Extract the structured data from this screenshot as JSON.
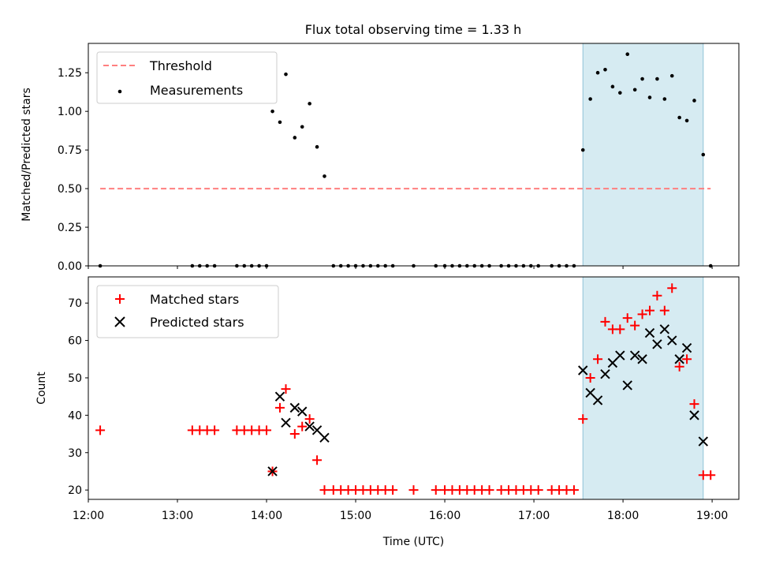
{
  "chart_data": [
    {
      "type": "scatter",
      "title": "Flux total observing time = 1.33 h",
      "xlabel": "",
      "ylabel": "Matched/Predicted stars",
      "xlim": [
        "12:00",
        "19:18"
      ],
      "ylim": [
        0,
        1.44
      ],
      "yticks": [
        "0.00",
        "0.25",
        "0.50",
        "0.75",
        "1.00",
        "1.25"
      ],
      "shaded_interval": [
        "17:33",
        "18:54"
      ],
      "legend_position": "upper-left",
      "legend": [
        {
          "label": "Threshold",
          "marker": "dashed-line",
          "color": "#ff7f7f"
        },
        {
          "label": "Measurements",
          "marker": "dot",
          "color": "#000000"
        }
      ],
      "threshold": {
        "value": 0.5,
        "x_range": [
          "12:08",
          "18:59"
        ]
      },
      "series": [
        {
          "name": "Measurements",
          "points": [
            [
              "12:08",
              0
            ],
            [
              "13:10",
              0
            ],
            [
              "13:15",
              0
            ],
            [
              "13:20",
              0
            ],
            [
              "13:25",
              0
            ],
            [
              "13:40",
              0
            ],
            [
              "13:45",
              0
            ],
            [
              "13:50",
              0
            ],
            [
              "13:55",
              0
            ],
            [
              "14:00",
              0
            ],
            [
              "14:04",
              1.0
            ],
            [
              "14:09",
              0.93
            ],
            [
              "14:13",
              1.24
            ],
            [
              "14:19",
              0.83
            ],
            [
              "14:24",
              0.9
            ],
            [
              "14:29",
              1.05
            ],
            [
              "14:34",
              0.77
            ],
            [
              "14:39",
              0.58
            ],
            [
              "14:45",
              0
            ],
            [
              "14:50",
              0
            ],
            [
              "14:55",
              0
            ],
            [
              "15:00",
              0
            ],
            [
              "15:05",
              0
            ],
            [
              "15:10",
              0
            ],
            [
              "15:15",
              0
            ],
            [
              "15:20",
              0
            ],
            [
              "15:25",
              0
            ],
            [
              "15:39",
              0
            ],
            [
              "15:54",
              0
            ],
            [
              "16:00",
              0
            ],
            [
              "16:05",
              0
            ],
            [
              "16:10",
              0
            ],
            [
              "16:15",
              0
            ],
            [
              "16:20",
              0
            ],
            [
              "16:25",
              0
            ],
            [
              "16:30",
              0
            ],
            [
              "16:38",
              0
            ],
            [
              "16:43",
              0
            ],
            [
              "16:48",
              0
            ],
            [
              "16:53",
              0
            ],
            [
              "16:58",
              0
            ],
            [
              "17:03",
              0
            ],
            [
              "17:12",
              0
            ],
            [
              "17:17",
              0
            ],
            [
              "17:22",
              0
            ],
            [
              "17:27",
              0
            ],
            [
              "17:33",
              0.75
            ],
            [
              "17:38",
              1.08
            ],
            [
              "17:43",
              1.25
            ],
            [
              "17:48",
              1.27
            ],
            [
              "17:53",
              1.16
            ],
            [
              "17:58",
              1.12
            ],
            [
              "18:03",
              1.37
            ],
            [
              "18:08",
              1.14
            ],
            [
              "18:13",
              1.21
            ],
            [
              "18:18",
              1.09
            ],
            [
              "18:23",
              1.21
            ],
            [
              "18:28",
              1.08
            ],
            [
              "18:33",
              1.23
            ],
            [
              "18:38",
              0.96
            ],
            [
              "18:43",
              0.94
            ],
            [
              "18:48",
              1.07
            ],
            [
              "18:54",
              0.72
            ],
            [
              "18:59",
              0
            ]
          ]
        }
      ]
    },
    {
      "type": "scatter",
      "title": "",
      "xlabel": "Time (UTC)",
      "ylabel": "Count",
      "xlim": [
        "12:00",
        "19:18"
      ],
      "ylim": [
        17.5,
        77
      ],
      "xticks": [
        "12:00",
        "13:00",
        "14:00",
        "15:00",
        "16:00",
        "17:00",
        "18:00",
        "19:00"
      ],
      "yticks": [
        "20",
        "30",
        "40",
        "50",
        "60",
        "70"
      ],
      "shaded_interval": [
        "17:33",
        "18:54"
      ],
      "legend_position": "upper-left",
      "legend": [
        {
          "label": "Matched stars",
          "marker": "plus",
          "color": "#ff0000"
        },
        {
          "label": "Predicted stars",
          "marker": "x",
          "color": "#000000"
        }
      ],
      "series": [
        {
          "name": "Matched stars",
          "marker": "plus",
          "color": "#ff0000",
          "points": [
            [
              "12:08",
              36
            ],
            [
              "13:10",
              36
            ],
            [
              "13:15",
              36
            ],
            [
              "13:20",
              36
            ],
            [
              "13:25",
              36
            ],
            [
              "13:40",
              36
            ],
            [
              "13:45",
              36
            ],
            [
              "13:50",
              36
            ],
            [
              "13:55",
              36
            ],
            [
              "14:00",
              36
            ],
            [
              "14:04",
              25
            ],
            [
              "14:09",
              42
            ],
            [
              "14:13",
              47
            ],
            [
              "14:19",
              35
            ],
            [
              "14:24",
              37
            ],
            [
              "14:29",
              39
            ],
            [
              "14:34",
              28
            ],
            [
              "14:39",
              20
            ],
            [
              "14:45",
              20
            ],
            [
              "14:50",
              20
            ],
            [
              "14:55",
              20
            ],
            [
              "15:00",
              20
            ],
            [
              "15:05",
              20
            ],
            [
              "15:10",
              20
            ],
            [
              "15:15",
              20
            ],
            [
              "15:20",
              20
            ],
            [
              "15:25",
              20
            ],
            [
              "15:39",
              20
            ],
            [
              "15:54",
              20
            ],
            [
              "16:00",
              20
            ],
            [
              "16:05",
              20
            ],
            [
              "16:10",
              20
            ],
            [
              "16:15",
              20
            ],
            [
              "16:20",
              20
            ],
            [
              "16:25",
              20
            ],
            [
              "16:30",
              20
            ],
            [
              "16:38",
              20
            ],
            [
              "16:43",
              20
            ],
            [
              "16:48",
              20
            ],
            [
              "16:53",
              20
            ],
            [
              "16:58",
              20
            ],
            [
              "17:03",
              20
            ],
            [
              "17:12",
              20
            ],
            [
              "17:17",
              20
            ],
            [
              "17:22",
              20
            ],
            [
              "17:27",
              20
            ],
            [
              "17:33",
              39
            ],
            [
              "17:38",
              50
            ],
            [
              "17:43",
              55
            ],
            [
              "17:48",
              65
            ],
            [
              "17:53",
              63
            ],
            [
              "17:58",
              63
            ],
            [
              "18:03",
              66
            ],
            [
              "18:08",
              64
            ],
            [
              "18:13",
              67
            ],
            [
              "18:18",
              68
            ],
            [
              "18:23",
              72
            ],
            [
              "18:28",
              68
            ],
            [
              "18:33",
              74
            ],
            [
              "18:38",
              53
            ],
            [
              "18:43",
              55
            ],
            [
              "18:48",
              43
            ],
            [
              "18:54",
              24
            ],
            [
              "18:59",
              24
            ]
          ]
        },
        {
          "name": "Predicted stars",
          "marker": "x",
          "color": "#000000",
          "points": [
            [
              "14:04",
              25
            ],
            [
              "14:09",
              45
            ],
            [
              "14:13",
              38
            ],
            [
              "14:19",
              42
            ],
            [
              "14:24",
              41
            ],
            [
              "14:29",
              37
            ],
            [
              "14:34",
              36
            ],
            [
              "14:39",
              34
            ],
            [
              "17:33",
              52
            ],
            [
              "17:38",
              46
            ],
            [
              "17:43",
              44
            ],
            [
              "17:48",
              51
            ],
            [
              "17:53",
              54
            ],
            [
              "17:58",
              56
            ],
            [
              "18:03",
              48
            ],
            [
              "18:08",
              56
            ],
            [
              "18:13",
              55
            ],
            [
              "18:18",
              62
            ],
            [
              "18:23",
              59
            ],
            [
              "18:28",
              63
            ],
            [
              "18:33",
              60
            ],
            [
              "18:38",
              55
            ],
            [
              "18:43",
              58
            ],
            [
              "18:48",
              40
            ],
            [
              "18:54",
              33
            ]
          ]
        }
      ]
    }
  ]
}
